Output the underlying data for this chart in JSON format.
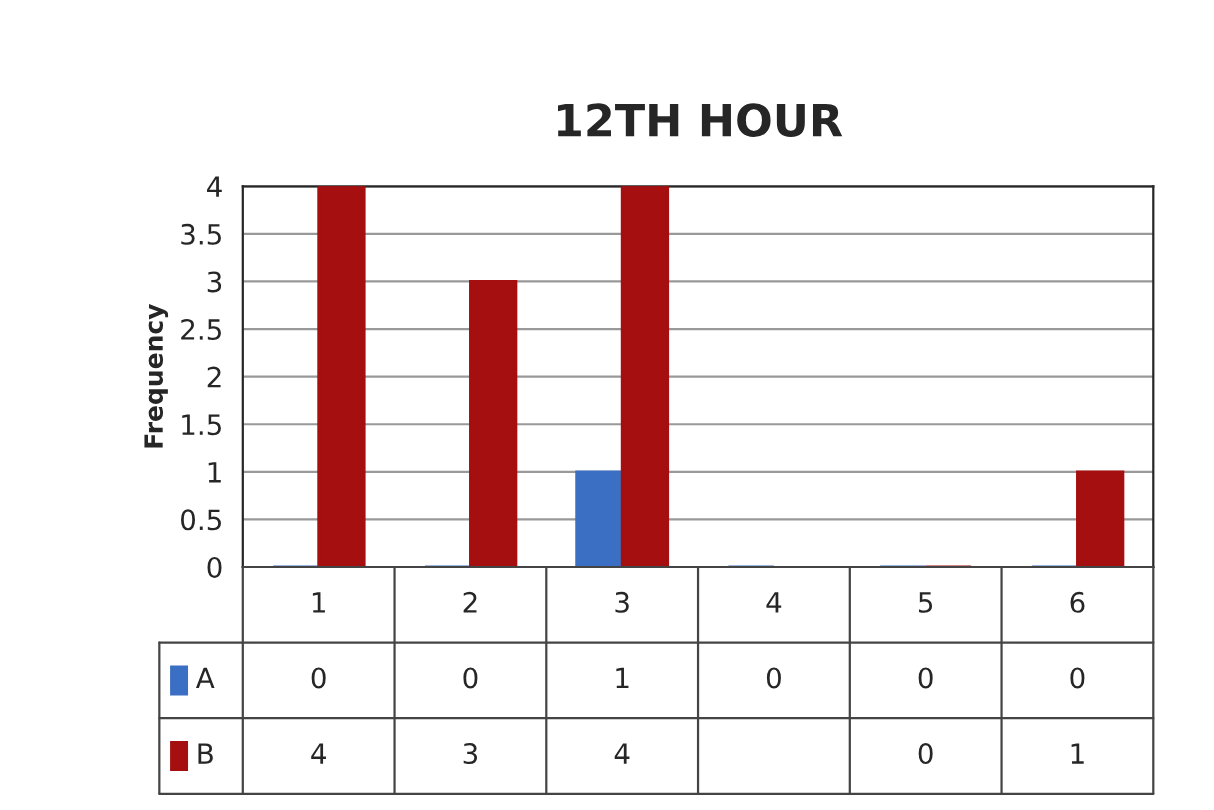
{
  "chart_data": {
    "type": "bar",
    "title": "12TH HOUR",
    "ylabel": "Frequency",
    "categories": [
      "1",
      "2",
      "3",
      "4",
      "5",
      "6"
    ],
    "series": [
      {
        "name": "A",
        "color": "#3a6fc4",
        "values": [
          0,
          0,
          1,
          0,
          0,
          0
        ]
      },
      {
        "name": "B",
        "color": "#a50f0f",
        "values": [
          4,
          3,
          4,
          null,
          0,
          1
        ]
      }
    ],
    "ylim": [
      0,
      4
    ],
    "yticks": [
      0,
      0.5,
      1,
      1.5,
      2,
      2.5,
      3,
      3.5,
      4
    ],
    "grid": "y",
    "legend": "bottom",
    "data_labels": true
  }
}
